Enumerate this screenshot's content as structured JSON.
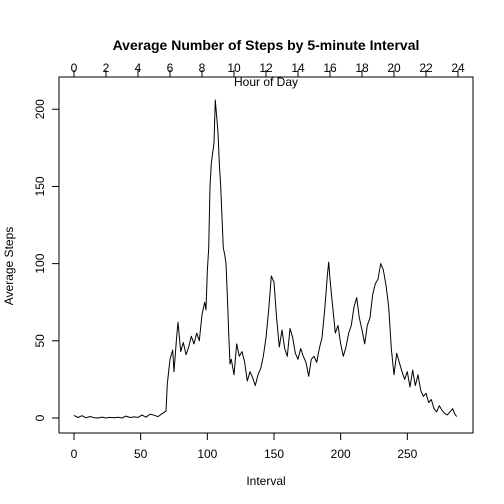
{
  "chart_data": {
    "type": "line",
    "title": "Average Number of Steps by 5-minute Interval",
    "xlabel": "Interval",
    "ylabel": "Average Steps",
    "top_axis_label": "Hour of Day",
    "xlim": [
      0,
      288
    ],
    "ylim": [
      0,
      206
    ],
    "x_ticks": [
      0,
      50,
      100,
      150,
      200,
      250
    ],
    "y_ticks": [
      0,
      50,
      100,
      150,
      200
    ],
    "top_ticks": [
      0,
      2,
      4,
      6,
      8,
      10,
      12,
      14,
      16,
      18,
      20,
      22,
      24
    ],
    "grid": false,
    "line_color": "#000000",
    "series": [
      {
        "x": [
          0,
          3,
          6,
          9,
          12,
          15,
          18,
          21,
          24,
          27,
          30,
          33,
          36,
          39,
          42,
          45,
          48,
          51,
          54,
          57,
          60,
          63,
          66,
          69,
          70,
          72,
          74,
          75,
          77,
          78,
          80,
          82,
          84,
          86,
          88,
          90,
          92,
          94,
          96,
          98,
          99,
          100,
          101,
          102,
          103,
          104,
          105,
          106,
          107,
          108,
          109,
          110,
          111,
          112,
          113,
          114,
          115,
          116,
          117,
          118,
          120,
          122,
          124,
          126,
          128,
          130,
          132,
          134,
          136,
          138,
          140,
          142,
          144,
          146,
          148,
          150,
          152,
          154,
          156,
          158,
          160,
          162,
          164,
          166,
          168,
          170,
          172,
          174,
          176,
          178,
          180,
          182,
          184,
          186,
          188,
          190,
          191,
          192,
          194,
          196,
          198,
          200,
          202,
          204,
          206,
          208,
          210,
          212,
          214,
          216,
          218,
          220,
          222,
          224,
          226,
          228,
          230,
          232,
          234,
          236,
          238,
          240,
          242,
          244,
          246,
          248,
          250,
          252,
          254,
          256,
          258,
          260,
          262,
          264,
          266,
          268,
          270,
          272,
          274,
          276,
          278,
          280,
          282,
          284,
          286,
          287
        ],
        "y": [
          1.7,
          0.3,
          1.5,
          0.1,
          1.0,
          0.2,
          0.0,
          0.6,
          0.0,
          0.4,
          0.2,
          0.5,
          0.0,
          1.2,
          0.3,
          0.7,
          0.4,
          1.9,
          0.5,
          2.5,
          1.8,
          0.9,
          2.8,
          4.5,
          22,
          38,
          44,
          30,
          53,
          62,
          43,
          49,
          41,
          46,
          53,
          48,
          55,
          50,
          67,
          75,
          70,
          95,
          110,
          150,
          165,
          172,
          178,
          206,
          195,
          185,
          165,
          150,
          130,
          110,
          106,
          100,
          80,
          55,
          35,
          38,
          28,
          48,
          40,
          43,
          36,
          24,
          30,
          26,
          21,
          28,
          32,
          40,
          52,
          70,
          92,
          88,
          64,
          46,
          57,
          45,
          40,
          58,
          52,
          42,
          38,
          45,
          40,
          36,
          27,
          38,
          40,
          36,
          45,
          52,
          70,
          92,
          101,
          90,
          72,
          55,
          60,
          48,
          40,
          46,
          55,
          60,
          72,
          78,
          65,
          57,
          48,
          60,
          65,
          80,
          87,
          90,
          100,
          96,
          86,
          72,
          45,
          28,
          42,
          36,
          30,
          25,
          30,
          20,
          31,
          21,
          28,
          18,
          14,
          16,
          10,
          12,
          6,
          4,
          8,
          5,
          3,
          2,
          4,
          6,
          2,
          1
        ]
      }
    ]
  }
}
